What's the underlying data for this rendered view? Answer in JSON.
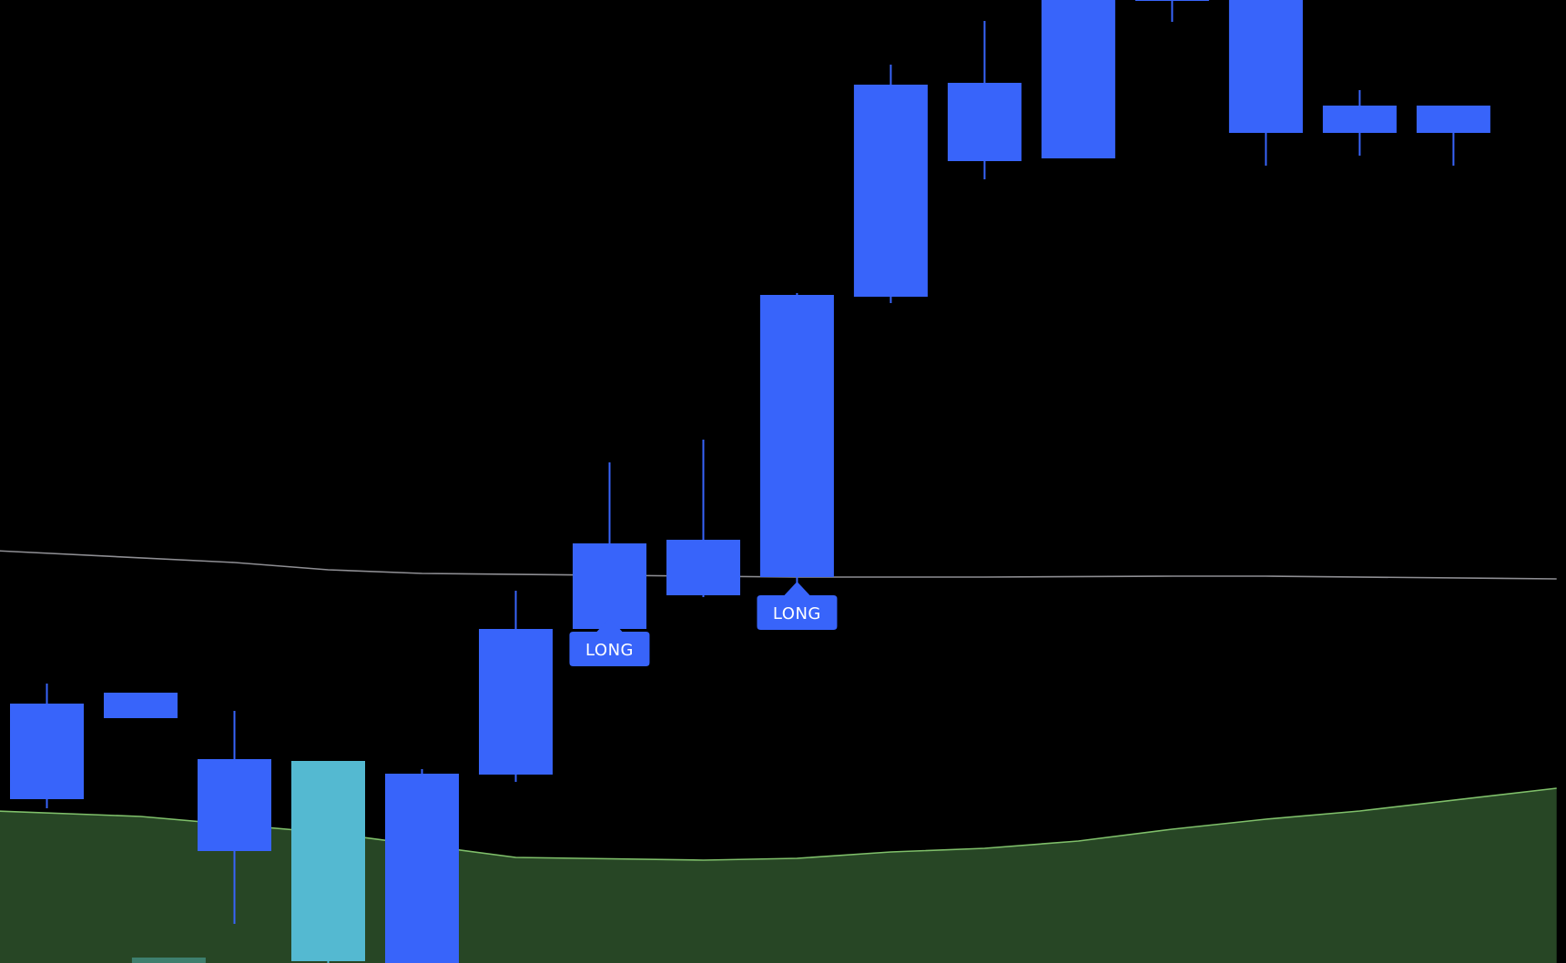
{
  "chart_data": {
    "type": "candlestick",
    "title": "",
    "xlabel": "",
    "ylabel": "",
    "grid": false,
    "legend": "none",
    "index_range": [
      -0.5,
      16.2
    ],
    "ylim": [
      0,
      1058
    ],
    "colors": {
      "background": "#000000",
      "candle": "#3864fa",
      "candle_highlight": "#54b9d1",
      "signal_bg": "#3864fa",
      "signal_text": "#ffffff",
      "gray_line": "#8e8e93",
      "green_line": "#7fbf6a",
      "green_fill": "#274625",
      "volume_bar": "#3e7f6e"
    },
    "candles": [
      {
        "i": 0,
        "open": 180,
        "close": 285,
        "high": 307,
        "low": 170,
        "color": "candle"
      },
      {
        "i": 1,
        "open": 269,
        "close": 297,
        "high": 297,
        "low": 269,
        "color": "candle"
      },
      {
        "i": 2,
        "open": 123,
        "close": 224,
        "high": 277,
        "low": 43,
        "color": "candle"
      },
      {
        "i": 3,
        "open": 2,
        "close": 222,
        "high": 222,
        "low": 0,
        "color": "candle_highlight"
      },
      {
        "i": 4,
        "open": 0,
        "close": 208,
        "high": 213,
        "low": 0,
        "color": "candle"
      },
      {
        "i": 5,
        "open": 207,
        "close": 367,
        "high": 409,
        "low": 199,
        "color": "candle"
      },
      {
        "i": 6,
        "open": 367,
        "close": 461,
        "high": 550,
        "low": 350,
        "color": "candle"
      },
      {
        "i": 7,
        "open": 404,
        "close": 465,
        "high": 575,
        "low": 402,
        "color": "candle"
      },
      {
        "i": 8,
        "open": 424,
        "close": 734,
        "high": 736,
        "low": 392,
        "color": "candle"
      },
      {
        "i": 9,
        "open": 732,
        "close": 965,
        "high": 987,
        "low": 725,
        "color": "candle"
      },
      {
        "i": 10,
        "open": 881,
        "close": 967,
        "high": 1035,
        "low": 861,
        "color": "candle"
      },
      {
        "i": 11,
        "open": 884,
        "close": 1058,
        "high": 1058,
        "low": 884,
        "color": "candle"
      },
      {
        "i": 12,
        "open": 1058,
        "close": 1058,
        "high": 1058,
        "low": 1034,
        "color": "candle"
      },
      {
        "i": 13,
        "open": 912,
        "close": 1058,
        "high": 1058,
        "low": 876,
        "color": "candle"
      },
      {
        "i": 14,
        "open": 912,
        "close": 942,
        "high": 959,
        "low": 887,
        "color": "candle"
      },
      {
        "i": 15,
        "open": 912,
        "close": 942,
        "high": 942,
        "low": 876,
        "color": "candle"
      }
    ],
    "gray_line": [
      {
        "i": -0.55,
        "y": 453
      },
      {
        "i": 2,
        "y": 440
      },
      {
        "i": 3,
        "y": 432
      },
      {
        "i": 4,
        "y": 428
      },
      {
        "i": 6,
        "y": 426
      },
      {
        "i": 8,
        "y": 424
      },
      {
        "i": 10,
        "y": 424
      },
      {
        "i": 12,
        "y": 425
      },
      {
        "i": 13,
        "y": 425
      },
      {
        "i": 16.1,
        "y": 422
      }
    ],
    "green_line": [
      {
        "i": -0.55,
        "y": 167
      },
      {
        "i": 1,
        "y": 161
      },
      {
        "i": 3,
        "y": 143
      },
      {
        "i": 5,
        "y": 116
      },
      {
        "i": 7,
        "y": 113
      },
      {
        "i": 8,
        "y": 115
      },
      {
        "i": 9,
        "y": 122
      },
      {
        "i": 10,
        "y": 126
      },
      {
        "i": 11,
        "y": 134
      },
      {
        "i": 12,
        "y": 147
      },
      {
        "i": 13,
        "y": 158
      },
      {
        "i": 14,
        "y": 167
      },
      {
        "i": 16.1,
        "y": 192
      }
    ],
    "volume_bars": [
      {
        "i": 1.3,
        "value": 6
      }
    ],
    "signals": [
      {
        "i": 6,
        "y": 345,
        "label": "LONG"
      },
      {
        "i": 8,
        "y": 385,
        "label": "LONG"
      }
    ]
  }
}
